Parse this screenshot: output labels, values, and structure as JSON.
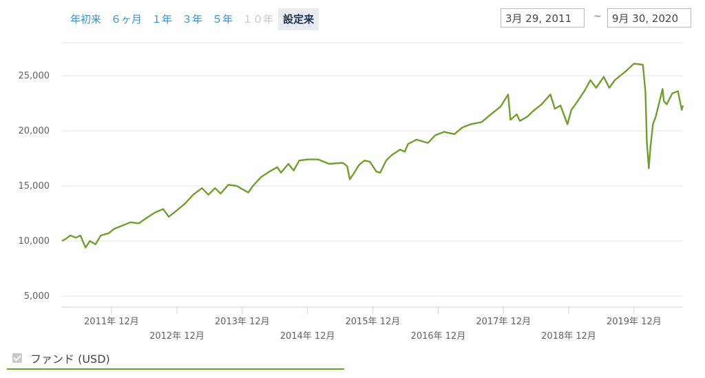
{
  "range_buttons": [
    {
      "label": "年初来",
      "state": "normal"
    },
    {
      "label": "６ヶ月",
      "state": "normal"
    },
    {
      "label": "１年",
      "state": "normal"
    },
    {
      "label": "３年",
      "state": "normal"
    },
    {
      "label": "５年",
      "state": "normal"
    },
    {
      "label": "１０年",
      "state": "disabled"
    },
    {
      "label": "設定来",
      "state": "active"
    }
  ],
  "date_range": {
    "from": "3月 29, 2011",
    "separator": "~",
    "to": "9月 30, 2020"
  },
  "legend": {
    "label": "ファンド (USD)",
    "checked": true
  },
  "chart_data": {
    "type": "line",
    "title": "",
    "xlabel": "",
    "ylabel": "",
    "ylim": [
      4000,
      28000
    ],
    "xlim": [
      "2011-03-29",
      "2020-09-30"
    ],
    "y_ticks": [
      {
        "value": 5000,
        "label": "5,000"
      },
      {
        "value": 10000,
        "label": "10,000"
      },
      {
        "value": 15000,
        "label": "15,000"
      },
      {
        "value": 20000,
        "label": "20,000"
      },
      {
        "value": 25000,
        "label": "25,000"
      }
    ],
    "x_ticks": [
      {
        "date": "2011-12-31",
        "label": "2011年 12月",
        "row": 1
      },
      {
        "date": "2012-12-31",
        "label": "2012年 12月",
        "row": 2
      },
      {
        "date": "2013-12-31",
        "label": "2013年 12月",
        "row": 1
      },
      {
        "date": "2014-12-31",
        "label": "2014年 12月",
        "row": 2
      },
      {
        "date": "2015-12-31",
        "label": "2015年 12月",
        "row": 1
      },
      {
        "date": "2016-12-31",
        "label": "2016年 12月",
        "row": 2
      },
      {
        "date": "2017-12-31",
        "label": "2017年 12月",
        "row": 1
      },
      {
        "date": "2018-12-31",
        "label": "2018年 12月",
        "row": 2
      },
      {
        "date": "2019-12-31",
        "label": "2019年 12月",
        "row": 1
      }
    ],
    "grid": true,
    "legend_position": "bottom-left",
    "series": [
      {
        "name": "ファンド (USD)",
        "color": "#6f9e2e",
        "points": [
          [
            "2011-03-29",
            10000
          ],
          [
            "2011-04-20",
            10200
          ],
          [
            "2011-05-15",
            10500
          ],
          [
            "2011-06-15",
            10300
          ],
          [
            "2011-07-10",
            10500
          ],
          [
            "2011-08-08",
            9400
          ],
          [
            "2011-09-01",
            10000
          ],
          [
            "2011-10-03",
            9700
          ],
          [
            "2011-11-01",
            10500
          ],
          [
            "2011-12-15",
            10700
          ],
          [
            "2012-01-15",
            11100
          ],
          [
            "2012-03-01",
            11400
          ],
          [
            "2012-04-15",
            11700
          ],
          [
            "2012-06-01",
            11600
          ],
          [
            "2012-07-15",
            12100
          ],
          [
            "2012-09-01",
            12600
          ],
          [
            "2012-10-15",
            12900
          ],
          [
            "2012-11-15",
            12200
          ],
          [
            "2013-01-01",
            12800
          ],
          [
            "2013-02-15",
            13400
          ],
          [
            "2013-04-01",
            14200
          ],
          [
            "2013-05-20",
            14800
          ],
          [
            "2013-06-25",
            14200
          ],
          [
            "2013-08-01",
            14800
          ],
          [
            "2013-09-01",
            14300
          ],
          [
            "2013-10-15",
            15100
          ],
          [
            "2013-12-01",
            15000
          ],
          [
            "2014-01-01",
            14700
          ],
          [
            "2014-02-03",
            14400
          ],
          [
            "2014-03-01",
            15000
          ],
          [
            "2014-04-15",
            15800
          ],
          [
            "2014-06-01",
            16300
          ],
          [
            "2014-07-15",
            16700
          ],
          [
            "2014-08-05",
            16200
          ],
          [
            "2014-09-15",
            17000
          ],
          [
            "2014-10-15",
            16400
          ],
          [
            "2014-11-15",
            17300
          ],
          [
            "2015-01-01",
            17400
          ],
          [
            "2015-03-01",
            17400
          ],
          [
            "2015-05-01",
            17000
          ],
          [
            "2015-07-15",
            17100
          ],
          [
            "2015-08-10",
            16800
          ],
          [
            "2015-08-25",
            15600
          ],
          [
            "2015-09-15",
            16100
          ],
          [
            "2015-10-15",
            16900
          ],
          [
            "2015-11-15",
            17300
          ],
          [
            "2015-12-15",
            17200
          ],
          [
            "2016-01-20",
            16300
          ],
          [
            "2016-02-11",
            16200
          ],
          [
            "2016-03-15",
            17300
          ],
          [
            "2016-04-15",
            17800
          ],
          [
            "2016-06-01",
            18300
          ],
          [
            "2016-06-27",
            18100
          ],
          [
            "2016-07-15",
            18800
          ],
          [
            "2016-09-01",
            19200
          ],
          [
            "2016-11-04",
            18900
          ],
          [
            "2016-12-15",
            19600
          ],
          [
            "2017-02-01",
            19900
          ],
          [
            "2017-04-01",
            19700
          ],
          [
            "2017-05-15",
            20300
          ],
          [
            "2017-07-01",
            20600
          ],
          [
            "2017-09-01",
            20800
          ],
          [
            "2017-10-15",
            21400
          ],
          [
            "2017-12-15",
            22200
          ],
          [
            "2018-01-26",
            23300
          ],
          [
            "2018-02-08",
            21000
          ],
          [
            "2018-03-15",
            21500
          ],
          [
            "2018-04-02",
            20900
          ],
          [
            "2018-05-15",
            21300
          ],
          [
            "2018-06-15",
            21800
          ],
          [
            "2018-08-01",
            22400
          ],
          [
            "2018-09-20",
            23300
          ],
          [
            "2018-10-15",
            22000
          ],
          [
            "2018-11-15",
            22300
          ],
          [
            "2018-12-24",
            20600
          ],
          [
            "2019-01-15",
            21900
          ],
          [
            "2019-02-15",
            22600
          ],
          [
            "2019-04-01",
            23700
          ],
          [
            "2019-05-01",
            24600
          ],
          [
            "2019-06-03",
            23900
          ],
          [
            "2019-07-15",
            24900
          ],
          [
            "2019-08-15",
            23900
          ],
          [
            "2019-09-15",
            24600
          ],
          [
            "2019-10-15",
            25000
          ],
          [
            "2019-11-15",
            25400
          ],
          [
            "2019-12-31",
            26100
          ],
          [
            "2020-02-19",
            26000
          ],
          [
            "2020-03-04",
            23500
          ],
          [
            "2020-03-12",
            19000
          ],
          [
            "2020-03-23",
            16600
          ],
          [
            "2020-04-01",
            18500
          ],
          [
            "2020-04-15",
            20600
          ],
          [
            "2020-05-01",
            21300
          ],
          [
            "2020-06-08",
            23800
          ],
          [
            "2020-06-15",
            22700
          ],
          [
            "2020-07-01",
            22400
          ],
          [
            "2020-08-01",
            23400
          ],
          [
            "2020-09-02",
            23600
          ],
          [
            "2020-09-23",
            21900
          ],
          [
            "2020-09-30",
            22300
          ]
        ]
      }
    ]
  }
}
